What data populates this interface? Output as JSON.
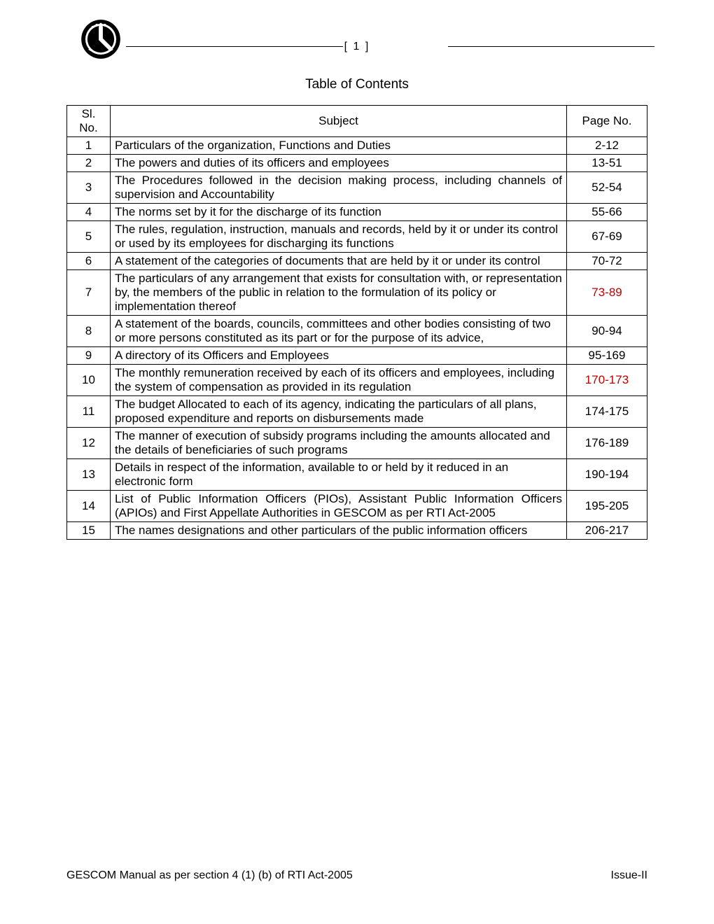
{
  "page_number_display": "[ 1 ]",
  "title": "Table of Contents",
  "columns": {
    "sl_line1": "Sl.",
    "sl_line2": "No.",
    "subject": "Subject",
    "page": "Page No."
  },
  "rows": [
    {
      "sl": "1",
      "subject": "Particulars of the organization, Functions and Duties",
      "page": "2-12",
      "justify": false,
      "page_red": false
    },
    {
      "sl": "2",
      "subject": "The powers and duties of its officers and employees",
      "page": "13-51",
      "justify": false,
      "page_red": false
    },
    {
      "sl": "3",
      "subject": "The Procedures followed in the decision making process, including channels of supervision and Accountability",
      "page": "52-54",
      "justify": true,
      "page_red": false
    },
    {
      "sl": "4",
      "subject": "The norms set by it for the discharge of its function",
      "page": "55-66",
      "justify": false,
      "page_red": false
    },
    {
      "sl": "5",
      "subject": "The rules, regulation, instruction, manuals and records, held by it or under its control or used by its employees for discharging its functions",
      "page": "67-69",
      "justify": false,
      "page_red": false
    },
    {
      "sl": "6",
      "subject": "A statement of the categories of documents that are held by it or under its control",
      "page": "70-72",
      "justify": false,
      "page_red": false
    },
    {
      "sl": "7",
      "subject": "The particulars of any arrangement that exists for consultation with, or representation by, the members of the public in relation to the formulation of its policy or implementation thereof",
      "page": "73-89",
      "justify": false,
      "page_red": true
    },
    {
      "sl": "8",
      "subject": "A statement of the boards, councils, committees and other bodies consisting of two or more persons constituted as its part or for the purpose of its advice,",
      "page": "90-94",
      "justify": false,
      "page_red": false
    },
    {
      "sl": "9",
      "subject": "A directory of its Officers and Employees",
      "page": "95-169",
      "justify": false,
      "page_red": false
    },
    {
      "sl": "10",
      "subject": "The monthly remuneration received by each of its officers and employees, including the system of compensation as provided in its regulation",
      "page": "170-173",
      "justify": false,
      "page_red": true
    },
    {
      "sl": "11",
      "subject": "The budget Allocated to each of its agency, indicating the particulars of all plans, proposed expenditure and reports on disbursements made",
      "page": "174-175",
      "justify": false,
      "page_red": false
    },
    {
      "sl": "12",
      "subject": "The manner of execution of subsidy programs including the amounts allocated and the details of beneficiaries of such programs",
      "page": "176-189",
      "justify": false,
      "page_red": false
    },
    {
      "sl": "13",
      "subject": "Details in respect of the information, available to or held by it reduced in an electronic form",
      "page": "190-194",
      "justify": false,
      "page_red": false
    },
    {
      "sl": "14",
      "subject": "List of Public Information Officers (PIOs), Assistant Public Information Officers (APIOs) and First Appellate Authorities in GESCOM as per RTI Act-2005",
      "page": "195-205",
      "justify": true,
      "page_red": false
    },
    {
      "sl": "15",
      "subject": "The names designations and other particulars of the public information officers",
      "page": "206-217",
      "justify": false,
      "page_red": false
    }
  ],
  "footer": {
    "left": "GESCOM Manual as per section 4 (1) (b) of RTI Act-2005",
    "right": "Issue-II"
  },
  "colors": {
    "text": "#000000",
    "red": "#c00000",
    "background": "#ffffff",
    "border": "#000000"
  }
}
